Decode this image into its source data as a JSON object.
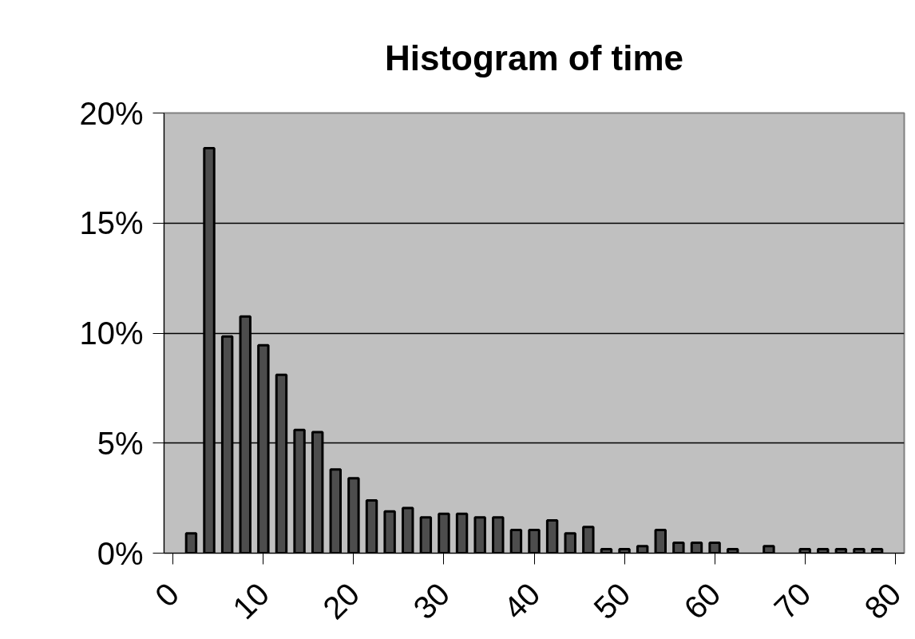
{
  "chart_data": {
    "type": "bar",
    "title": "Histogram of time",
    "categories": [
      "0",
      null,
      null,
      null,
      null,
      "10",
      null,
      null,
      null,
      null,
      "20",
      null,
      null,
      null,
      null,
      "30",
      null,
      null,
      null,
      null,
      "40",
      null,
      null,
      null,
      null,
      "50",
      null,
      null,
      null,
      null,
      "60",
      null,
      null,
      null,
      null,
      "70",
      null,
      null,
      null,
      null,
      "80"
    ],
    "values": [
      null,
      0.9,
      18.4,
      9.85,
      10.75,
      9.45,
      8.1,
      5.6,
      5.5,
      3.8,
      3.4,
      2.4,
      1.9,
      2.05,
      1.62,
      1.79,
      1.79,
      1.62,
      1.62,
      1.05,
      1.05,
      1.49,
      0.9,
      1.19,
      0.18,
      0.18,
      0.32,
      1.05,
      0.47,
      0.47,
      0.47,
      0.18,
      null,
      0.32,
      null,
      0.18,
      0.18,
      0.18,
      0.18,
      0.18,
      null
    ],
    "color": "#4d4d4d",
    "ylim": [
      0,
      20
    ],
    "yticks": [
      {
        "value": 0,
        "label": "0%"
      },
      {
        "value": 5,
        "label": "5%"
      },
      {
        "value": 10,
        "label": "10%"
      },
      {
        "value": 15,
        "label": "15%"
      },
      {
        "value": 20,
        "label": "20%"
      }
    ],
    "grid": "y"
  }
}
